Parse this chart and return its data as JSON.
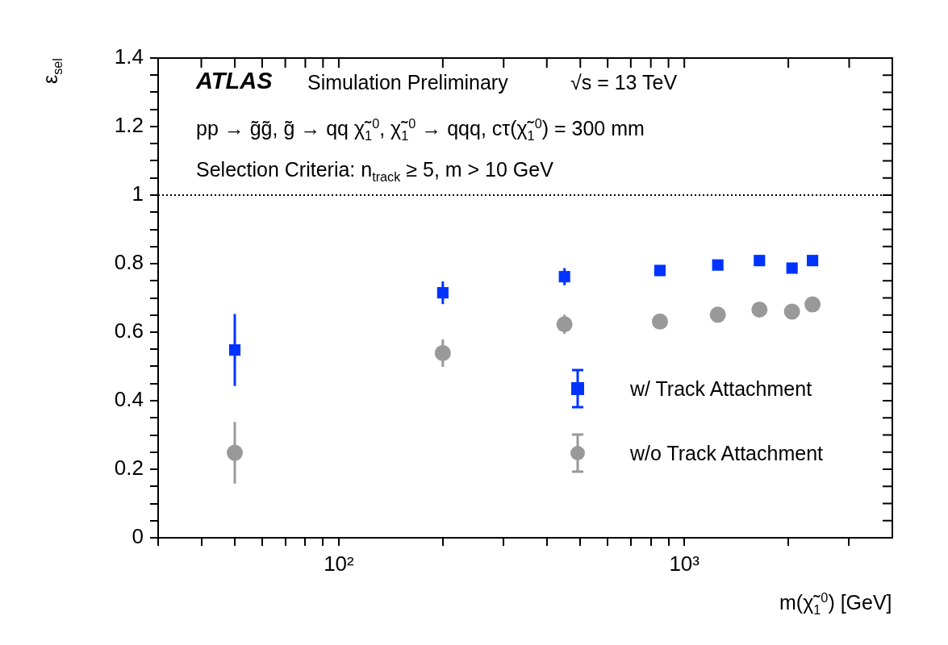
{
  "chart_data": {
    "type": "scatter",
    "xlabel": "m(χ̃$_{1}$$^{0}$) [GeV]",
    "ylabel": "ε$_{sel}$",
    "annotations": [
      "ATLAS",
      "Simulation Preliminary",
      "√s = 13 TeV",
      "pp → g̃g̃,  g̃ → qq χ̃$_{1}$$^{0}$,  χ̃$_{1}$$^{0}$ → qqq, cτ(χ̃$_{1}$$^{0}$) = 300 mm",
      "Selection Criteria: n$_{track}$ ≥ 5,  m > 10 GeV"
    ],
    "x": [
      50,
      200,
      450,
      850,
      1250,
      1650,
      2050,
      2350
    ],
    "series": [
      {
        "name": "w/ Track Attachment",
        "color": "#0033ff",
        "marker": "square",
        "values": [
          0.548,
          0.715,
          0.762,
          0.78,
          0.796,
          0.809,
          0.787,
          0.809
        ],
        "errors": [
          0.105,
          0.033,
          0.025,
          null,
          null,
          null,
          null,
          null
        ]
      },
      {
        "name": "w/o Track Attachment",
        "color": "#999999",
        "marker": "circle",
        "values": [
          0.248,
          0.539,
          0.623,
          0.631,
          0.651,
          0.666,
          0.66,
          0.681
        ],
        "errors": [
          0.09,
          0.04,
          0.028,
          null,
          null,
          null,
          null,
          null
        ]
      }
    ],
    "log": "x",
    "xlim": [
      30,
      4000
    ],
    "xticks": [
      {
        "value": 30,
        "label": null
      },
      {
        "value": 40,
        "label": null
      },
      {
        "value": 50,
        "label": null
      },
      {
        "value": 60,
        "label": null
      },
      {
        "value": 70,
        "label": null
      },
      {
        "value": 80,
        "label": null
      },
      {
        "value": 90,
        "label": null
      },
      {
        "value": 100,
        "label": "10²"
      },
      {
        "value": 200,
        "label": null
      },
      {
        "value": 300,
        "label": null
      },
      {
        "value": 400,
        "label": null
      },
      {
        "value": 500,
        "label": null
      },
      {
        "value": 600,
        "label": null
      },
      {
        "value": 700,
        "label": null
      },
      {
        "value": 800,
        "label": null
      },
      {
        "value": 900,
        "label": null
      },
      {
        "value": 1000,
        "label": "10³"
      },
      {
        "value": 2000,
        "label": null
      },
      {
        "value": 3000,
        "label": null
      }
    ],
    "ylim": [
      0,
      1.4
    ],
    "yticks": [
      0,
      {
        "value": 0.05,
        "label": null
      },
      {
        "value": 0.1,
        "label": null
      },
      {
        "value": 0.15,
        "label": null
      },
      0.2,
      {
        "value": 0.25,
        "label": null
      },
      {
        "value": 0.3,
        "label": null
      },
      {
        "value": 0.35,
        "label": null
      },
      0.4,
      {
        "value": 0.45,
        "label": null
      },
      {
        "value": 0.5,
        "label": null
      },
      {
        "value": 0.55,
        "label": null
      },
      0.6,
      {
        "value": 0.65,
        "label": null
      },
      {
        "value": 0.7,
        "label": null
      },
      {
        "value": 0.75,
        "label": null
      },
      0.8,
      {
        "value": 0.85,
        "label": null
      },
      {
        "value": 0.9,
        "label": null
      },
      {
        "value": 0.95,
        "label": null
      },
      1,
      {
        "value": 1.05,
        "label": null
      },
      {
        "value": 1.1,
        "label": null
      },
      {
        "value": 1.15,
        "label": null
      },
      1.2,
      {
        "value": 1.25,
        "label": null
      },
      {
        "value": 1.3,
        "label": null
      },
      {
        "value": 1.35,
        "label": null
      },
      1.4
    ],
    "ref_lines": [
      {
        "axis": "y",
        "value": 1,
        "line_style": "dotted",
        "color": "#000000"
      }
    ],
    "grid": false,
    "legend": "bottom right"
  }
}
